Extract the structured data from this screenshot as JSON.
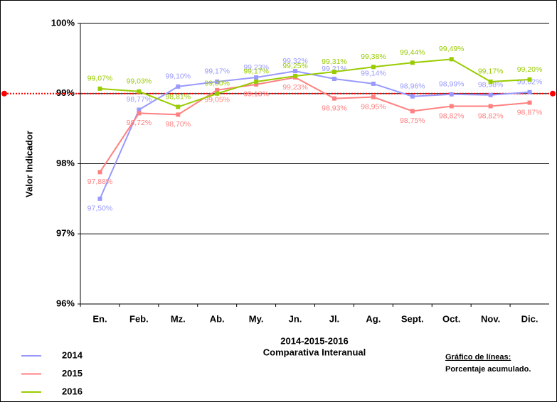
{
  "chart_data": {
    "type": "line",
    "y_axis_label": "Valor Indicador",
    "x_axis_title": "2014-2015-2016",
    "x_axis_subtitle": "Comparativa Interanual",
    "note_title": "Gráfico de líneas:",
    "note_text": "Porcentaje acumulado.",
    "categories": [
      "En.",
      "Feb.",
      "Mz.",
      "Ab.",
      "My.",
      "Jn.",
      "Jl.",
      "Ag.",
      "Sept.",
      "Oct.",
      "Nov.",
      "Dic."
    ],
    "series": [
      {
        "name": "2014",
        "color": "#9999ff",
        "values": [
          97.5,
          98.77,
          99.1,
          99.17,
          99.23,
          99.32,
          99.21,
          99.14,
          98.96,
          98.99,
          98.98,
          99.02
        ],
        "value_labels": [
          "97,50%",
          "98,77%",
          "99,10%",
          "99,17%",
          "99,23%",
          "99,32%",
          "99,21%",
          "99,14%",
          "98,96%",
          "98,99%",
          "98,98%",
          "99,02%"
        ]
      },
      {
        "name": "2015",
        "color": "#ff8080",
        "values": [
          97.88,
          98.72,
          98.7,
          99.05,
          99.13,
          99.23,
          98.93,
          98.95,
          98.75,
          98.82,
          98.82,
          98.87
        ],
        "value_labels": [
          "97,88%",
          "98,72%",
          "98,70%",
          "99,05%",
          "99,13%",
          "99,23%",
          "98,93%",
          "98,95%",
          "98,75%",
          "98,82%",
          "98,82%",
          "98,87%"
        ]
      },
      {
        "name": "2016",
        "color": "#99cc00",
        "values": [
          99.07,
          99.03,
          98.81,
          99.0,
          99.17,
          99.25,
          99.31,
          99.38,
          99.44,
          99.49,
          99.17,
          99.2
        ],
        "value_labels": [
          "99,07%",
          "99,03%",
          "98,81%",
          "99,00%",
          "99,17%",
          "99,25%",
          "99,31%",
          "99,38%",
          "99,44%",
          "99,49%",
          "99,17%",
          "99,20%"
        ]
      }
    ],
    "ylim": [
      96,
      100
    ],
    "yticks": [
      {
        "value": 96,
        "label": "96%"
      },
      {
        "value": 97,
        "label": "97%"
      },
      {
        "value": 98,
        "label": "98%"
      },
      {
        "value": 99,
        "label": "99%"
      },
      {
        "value": 100,
        "label": "100%"
      }
    ],
    "grid": true,
    "reference_line": {
      "value": 99,
      "color": "#ff0000"
    }
  }
}
